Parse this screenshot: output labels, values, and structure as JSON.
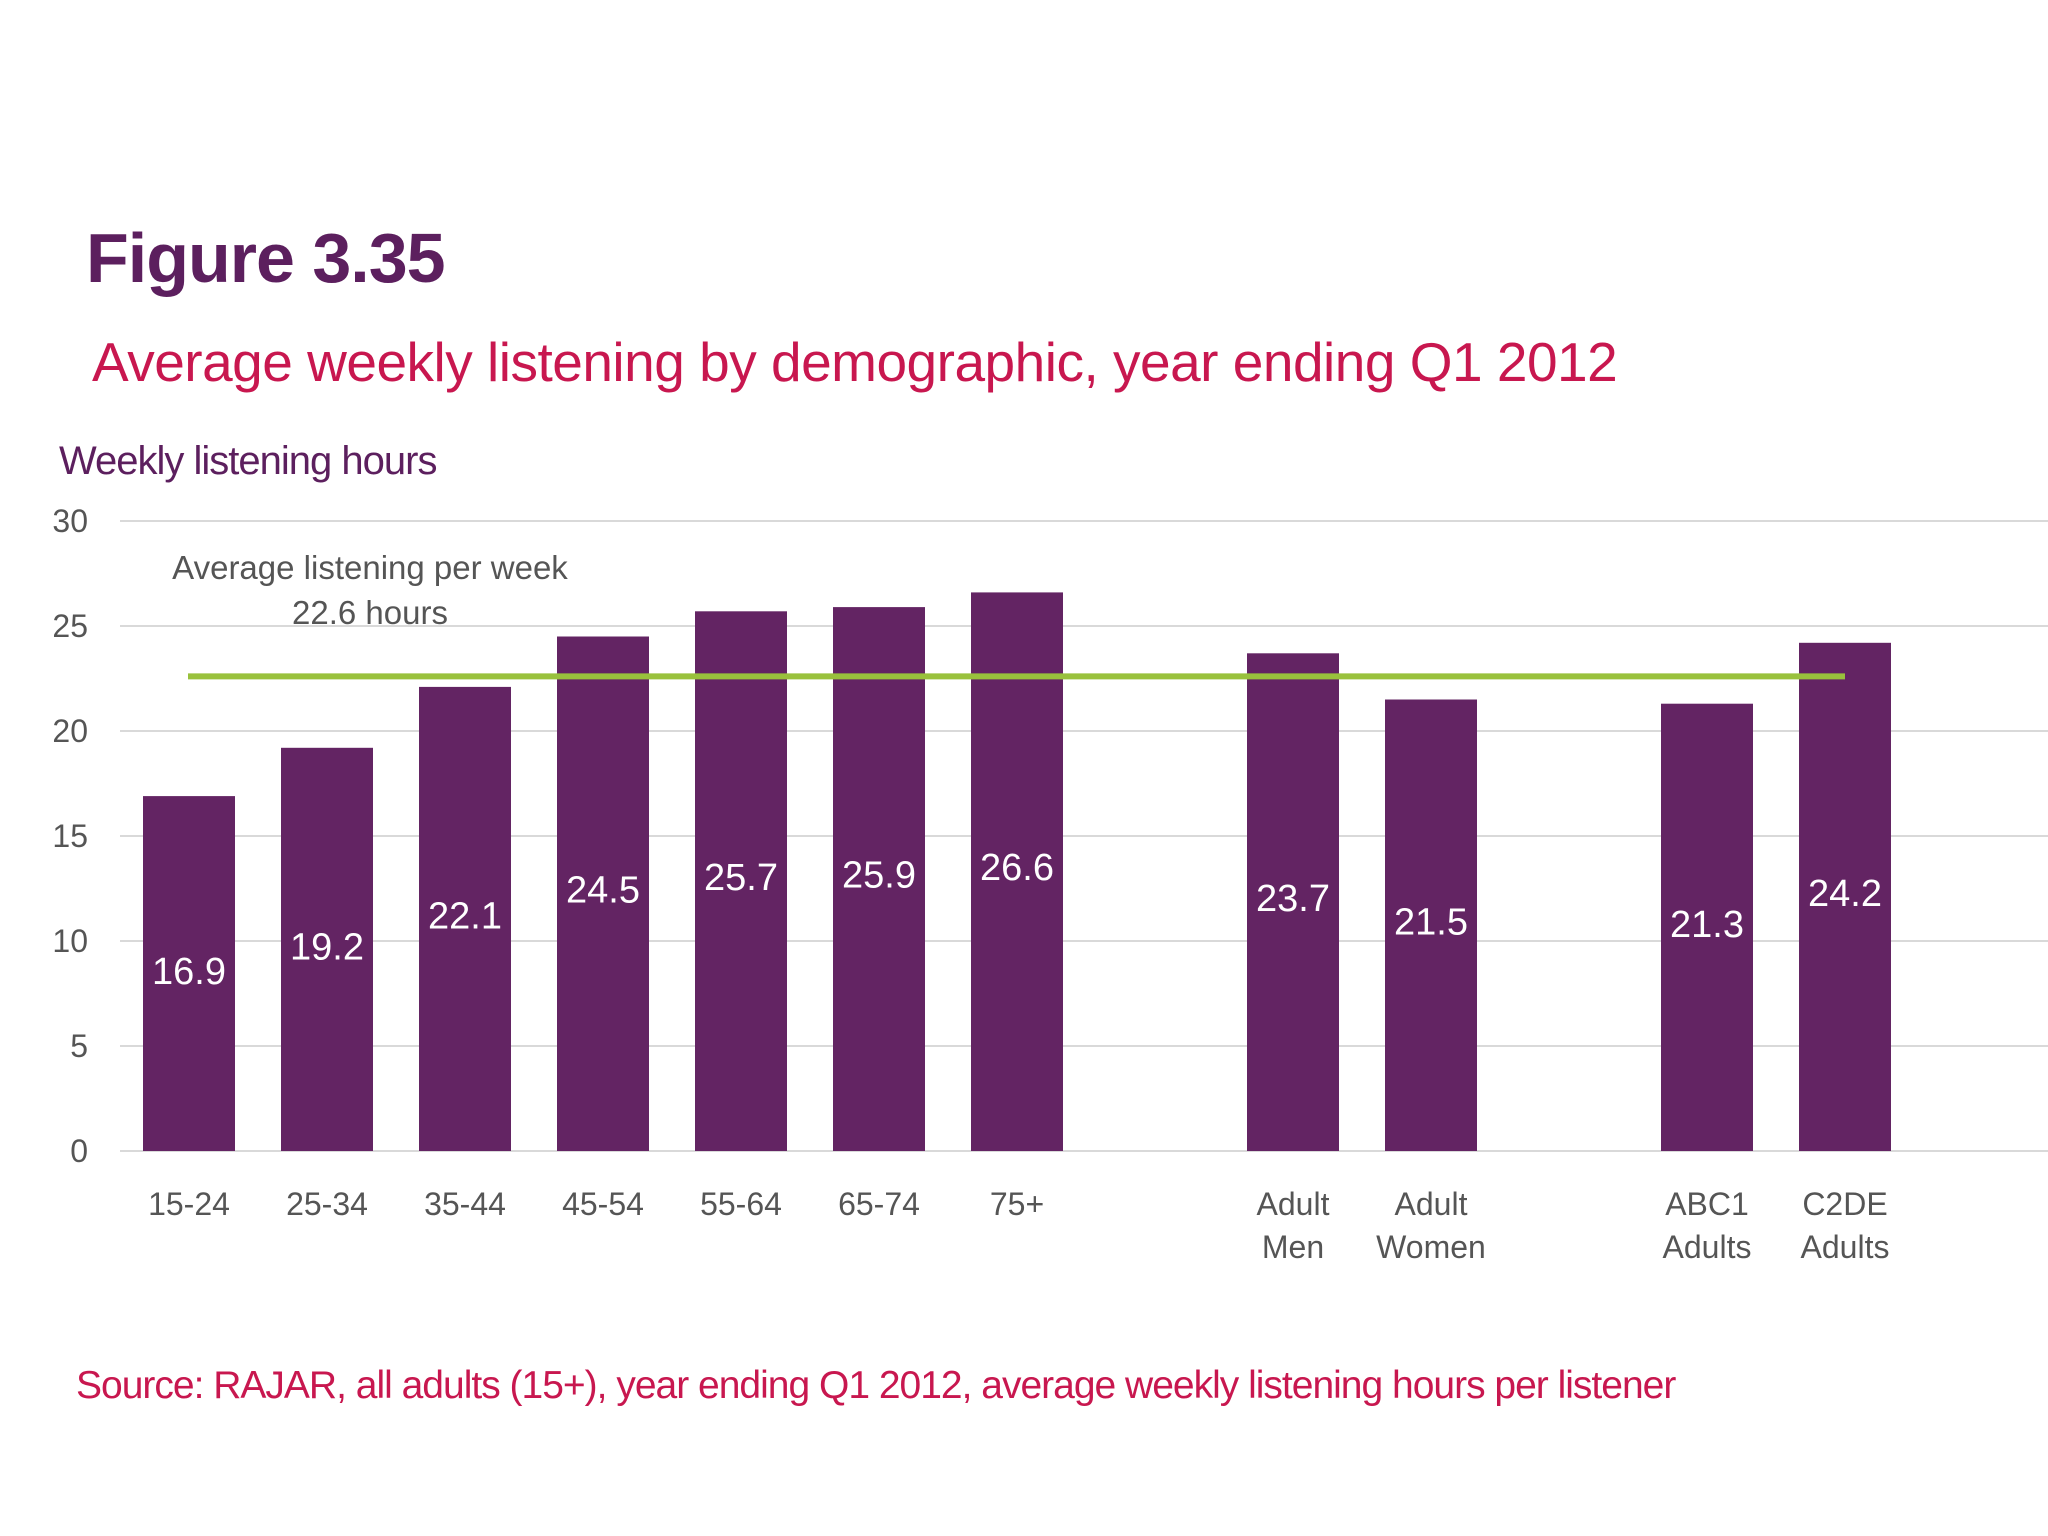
{
  "figure_label": "Figure 3.35",
  "subtitle": "Average weekly listening by demographic, year ending Q1 2012",
  "y_axis_title": "Weekly listening hours",
  "source": "Source: RAJAR, all adults (15+), year ending Q1 2012, average weekly listening hours per listener",
  "colors": {
    "bar": "#632463",
    "average_line": "#99c13c",
    "grid": "#d9d9d9",
    "title": "#5c1f5e",
    "accent": "#c8174f"
  },
  "chart_data": {
    "type": "bar",
    "title": "Average weekly listening by demographic, year ending Q1 2012",
    "ylabel": "Weekly listening hours",
    "xlabel": "",
    "ylim": [
      0,
      30
    ],
    "yticks": [
      0,
      5,
      10,
      15,
      20,
      25,
      30
    ],
    "grid": true,
    "categories": [
      [
        "15-24"
      ],
      [
        "25-34"
      ],
      [
        "35-44"
      ],
      [
        "45-54"
      ],
      [
        "55-64"
      ],
      [
        "65-74"
      ],
      [
        "75+"
      ],
      [
        "Adult",
        "Men"
      ],
      [
        "Adult",
        "Women"
      ],
      [
        "ABC1",
        "Adults"
      ],
      [
        "C2DE",
        "Adults"
      ]
    ],
    "values": [
      16.9,
      19.2,
      22.1,
      24.5,
      25.7,
      25.9,
      26.6,
      23.7,
      21.5,
      21.3,
      24.2
    ],
    "value_labels": [
      "16.9",
      "19.2",
      "22.1",
      "24.5",
      "25.7",
      "25.9",
      "26.6",
      "23.7",
      "21.5",
      "21.3",
      "24.2"
    ],
    "groups": [
      [
        0,
        1,
        2,
        3,
        4,
        5,
        6
      ],
      [
        7,
        8
      ],
      [
        9,
        10
      ]
    ],
    "reference_line": {
      "value": 22.6,
      "label_line1": "Average listening per week",
      "label_line2": "22.6 hours"
    }
  }
}
